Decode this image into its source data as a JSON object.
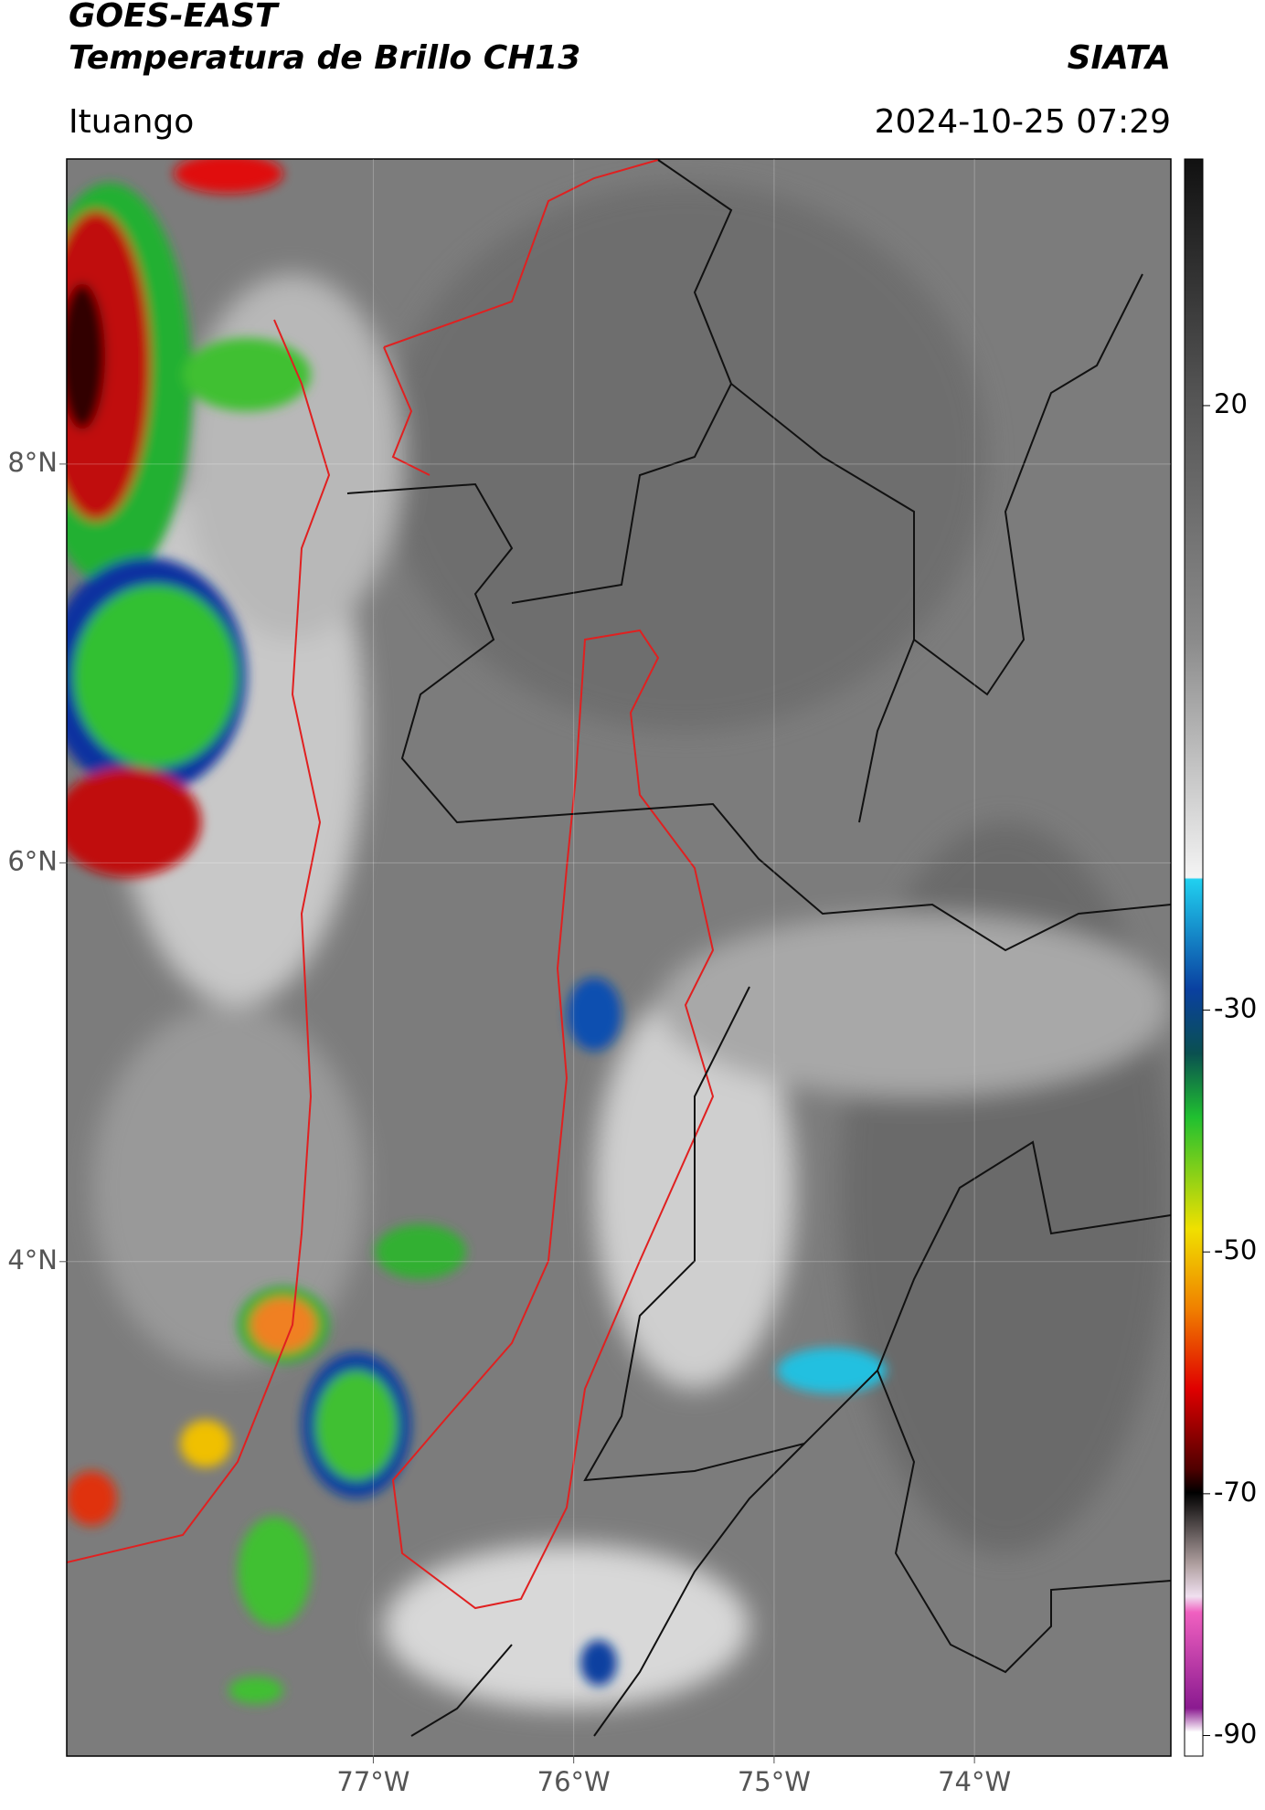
{
  "chart_data": {
    "type": "map",
    "title": "GOES-EAST",
    "subtitle": "Temperatura de Brillo CH13",
    "source": "SIATA",
    "region": "Ituango",
    "datetime": "2024-10-25 07:29",
    "xlim": [
      -78.53,
      -73.02
    ],
    "ylim": [
      1.52,
      9.53
    ],
    "xticks": [
      {
        "value": -77,
        "label": "77°W"
      },
      {
        "value": -76,
        "label": "76°W"
      },
      {
        "value": -75,
        "label": "75°W"
      },
      {
        "value": -74,
        "label": "74°W"
      }
    ],
    "yticks": [
      {
        "value": 8,
        "label": "8°N"
      },
      {
        "value": 6,
        "label": "6°N"
      },
      {
        "value": 4,
        "label": "4°N"
      }
    ],
    "colorbar": {
      "lim": [
        -91.7,
        40.4
      ],
      "ticks": [
        20,
        -30,
        -50,
        -70,
        -90
      ]
    },
    "grid": true
  }
}
